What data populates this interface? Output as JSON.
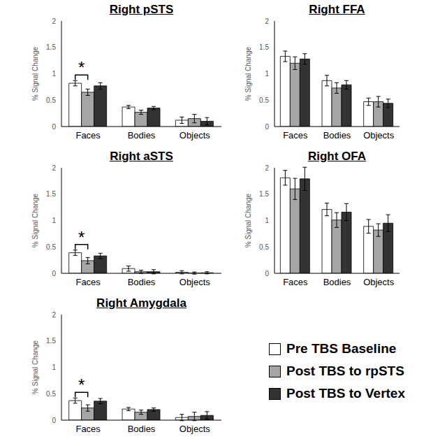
{
  "chart_data": [
    {
      "type": "bar",
      "title": "Right pSTS",
      "y_label": "% Signal Change",
      "categories": [
        "Faces",
        "Bodies",
        "Objects"
      ],
      "ylim": [
        0,
        2
      ],
      "yticks": [
        0,
        0.5,
        1,
        1.5,
        2
      ],
      "series": [
        {
          "name": "Pre TBS Baseline",
          "color": "#ffffff",
          "values": [
            0.82,
            0.37,
            0.12
          ],
          "errors": [
            0.05,
            0.03,
            0.06
          ]
        },
        {
          "name": "Post TBS to rpSTS",
          "color": "#a6a6a6",
          "values": [
            0.65,
            0.27,
            0.15
          ],
          "errors": [
            0.06,
            0.04,
            0.08
          ]
        },
        {
          "name": "Post TBS to Vertex",
          "color": "#333333",
          "values": [
            0.77,
            0.35,
            0.1
          ],
          "errors": [
            0.06,
            0.03,
            0.07
          ]
        }
      ],
      "annotations": [
        {
          "text": "*",
          "category": "Faces",
          "between": [
            "Pre TBS Baseline",
            "Post TBS to rpSTS"
          ]
        }
      ]
    },
    {
      "type": "bar",
      "title": "Right FFA",
      "y_label": "% Signal Change",
      "categories": [
        "Faces",
        "Bodies",
        "Objects"
      ],
      "ylim": [
        0,
        2
      ],
      "yticks": [
        0,
        0.5,
        1,
        1.5,
        2
      ],
      "series": [
        {
          "name": "Pre TBS Baseline",
          "color": "#ffffff",
          "values": [
            1.33,
            0.87,
            0.47
          ],
          "errors": [
            0.1,
            0.1,
            0.07
          ]
        },
        {
          "name": "Post TBS to rpSTS",
          "color": "#a6a6a6",
          "values": [
            1.2,
            0.73,
            0.47
          ],
          "errors": [
            0.12,
            0.1,
            0.1
          ]
        },
        {
          "name": "Post TBS to Vertex",
          "color": "#333333",
          "values": [
            1.28,
            0.79,
            0.44
          ],
          "errors": [
            0.1,
            0.08,
            0.08
          ]
        }
      ],
      "annotations": []
    },
    {
      "type": "bar",
      "title": "Right aSTS",
      "y_label": "% Signal Change",
      "categories": [
        "Faces",
        "Bodies",
        "Objects"
      ],
      "ylim": [
        0,
        2
      ],
      "yticks": [
        0,
        0.5,
        1,
        1.5,
        2
      ],
      "series": [
        {
          "name": "Pre TBS Baseline",
          "color": "#ffffff",
          "values": [
            0.39,
            0.09,
            0.02
          ],
          "errors": [
            0.05,
            0.05,
            0.03
          ]
        },
        {
          "name": "Post TBS to rpSTS",
          "color": "#a6a6a6",
          "values": [
            0.24,
            0.03,
            0.005
          ],
          "errors": [
            0.06,
            0.03,
            0.02
          ]
        },
        {
          "name": "Post TBS to Vertex",
          "color": "#333333",
          "values": [
            0.33,
            0.03,
            0.01
          ],
          "errors": [
            0.05,
            0.04,
            0.02
          ]
        }
      ],
      "annotations": [
        {
          "text": "*",
          "category": "Faces",
          "between": [
            "Pre TBS Baseline",
            "Post TBS to rpSTS"
          ]
        }
      ]
    },
    {
      "type": "bar",
      "title": "Right OFA",
      "y_label": "% Signal Change",
      "categories": [
        "Faces",
        "Bodies",
        "Objects"
      ],
      "ylim": [
        0,
        2
      ],
      "yticks": [
        0,
        0.5,
        1,
        1.5,
        2
      ],
      "series": [
        {
          "name": "Pre TBS Baseline",
          "color": "#ffffff",
          "values": [
            1.81,
            1.21,
            0.89
          ],
          "errors": [
            0.14,
            0.12,
            0.13
          ]
        },
        {
          "name": "Post TBS to rpSTS",
          "color": "#a6a6a6",
          "values": [
            1.6,
            1.01,
            0.82
          ],
          "errors": [
            0.2,
            0.14,
            0.12
          ]
        },
        {
          "name": "Post TBS to Vertex",
          "color": "#333333",
          "values": [
            1.79,
            1.16,
            0.95
          ],
          "errors": [
            0.22,
            0.16,
            0.16
          ]
        }
      ],
      "annotations": []
    },
    {
      "type": "bar",
      "title": "Right Amygdala",
      "y_label": "% Signal Change",
      "categories": [
        "Faces",
        "Bodies",
        "Objects"
      ],
      "ylim": [
        0,
        2
      ],
      "yticks": [
        0,
        0.5,
        1,
        1.5,
        2
      ],
      "series": [
        {
          "name": "Pre TBS Baseline",
          "color": "#ffffff",
          "values": [
            0.37,
            0.21,
            0.05
          ],
          "errors": [
            0.05,
            0.03,
            0.06
          ]
        },
        {
          "name": "Post TBS to rpSTS",
          "color": "#a6a6a6",
          "values": [
            0.23,
            0.15,
            0.07
          ],
          "errors": [
            0.06,
            0.04,
            0.08
          ]
        },
        {
          "name": "Post TBS to Vertex",
          "color": "#333333",
          "values": [
            0.36,
            0.2,
            0.09
          ],
          "errors": [
            0.05,
            0.03,
            0.07
          ]
        }
      ],
      "annotations": [
        {
          "text": "*",
          "category": "Faces",
          "between": [
            "Pre TBS Baseline",
            "Post TBS to rpSTS"
          ]
        }
      ]
    }
  ]
}
